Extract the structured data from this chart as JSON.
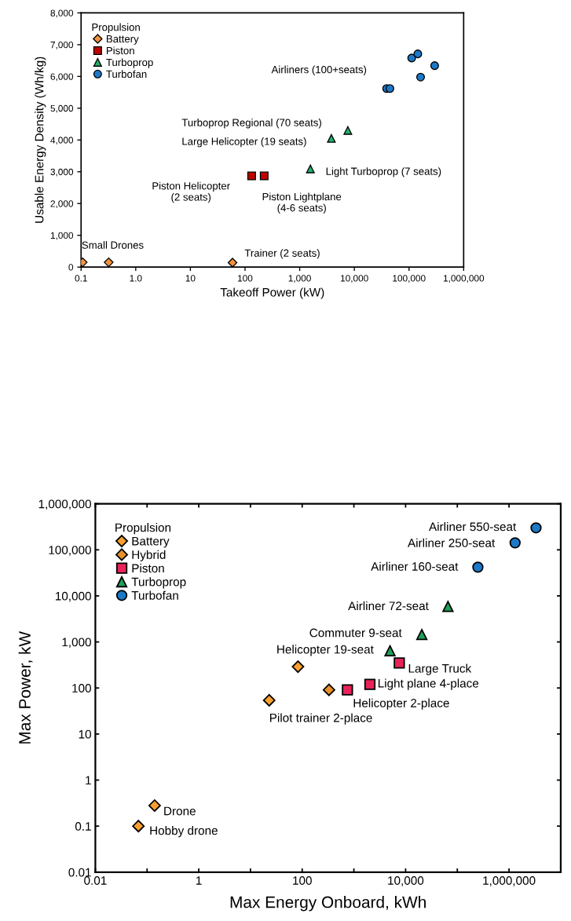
{
  "chart_data": [
    {
      "type": "scatter",
      "xlabel": "Takeoff Power (kW)",
      "ylabel": "Usable Energy Density (Wh/kg)",
      "legend_title": "Propulsion",
      "legend": "top left",
      "log": "x",
      "xlim": [
        0.1,
        1000000
      ],
      "ylim": [
        0,
        8000
      ],
      "xticks": [
        {
          "value": 0.1,
          "label": "0.1"
        },
        {
          "value": 1,
          "label": "1.0"
        },
        10,
        100,
        {
          "value": 1000,
          "label": "1,000"
        },
        {
          "value": 10000,
          "label": "10,000"
        },
        {
          "value": 100000,
          "label": "100,000"
        },
        {
          "value": 1000000,
          "label": "1,000,000"
        }
      ],
      "yticks": [
        0,
        {
          "value": 1000,
          "label": "1,000"
        },
        {
          "value": 2000,
          "label": "2,000"
        },
        {
          "value": 3000,
          "label": "3,000"
        },
        {
          "value": 4000,
          "label": "4,000"
        },
        {
          "value": 5000,
          "label": "5,000"
        },
        {
          "value": 6000,
          "label": "6,000"
        },
        {
          "value": 7000,
          "label": "7,000"
        },
        {
          "value": 8000,
          "label": "8,000"
        }
      ],
      "series": [
        {
          "name": "Battery",
          "color": "#f4923c",
          "marker": "diamond",
          "x": [
            0.107,
            0.32,
            59
          ],
          "values": [
            150,
            150,
            140
          ]
        },
        {
          "name": "Piston",
          "color": "#c00000",
          "marker": "square",
          "x": [
            132,
            224
          ],
          "values": [
            2870,
            2870
          ]
        },
        {
          "name": "Turboprop",
          "color": "#21b06a",
          "marker": "triangle",
          "x": [
            1570,
            3800,
            7600
          ],
          "values": [
            3090,
            4050,
            4300
          ]
        },
        {
          "name": "Turbofan",
          "color": "#1e78c8",
          "marker": "circle",
          "x": [
            39000,
            44700,
            112000,
            145000,
            163000,
            295000
          ],
          "values": [
            5620,
            5620,
            6580,
            6710,
            5980,
            6340
          ]
        }
      ],
      "annotations": [
        "Airliners (100+seats)",
        "Turboprop Regional (70 seats)",
        "Large Helicopter (19 seats)",
        {
          "text": "Light Turboprop (7 seats)",
          "x": 1570,
          "y": 3090
        },
        "Piston Helicopter\n(2 seats)",
        {
          "text": "Piston Lightplane\n(4-6 seats)",
          "x": 224,
          "y": 2870
        },
        {
          "text": "Small Drones",
          "x": 0.107,
          "y": 150
        },
        {
          "text": "Trainer (2 seats)",
          "x": 59,
          "y": 140
        }
      ]
    },
    {
      "type": "scatter",
      "xlabel": "Max Energy Onboard, kWh",
      "ylabel": "Max Power, kW",
      "legend_title": "Propulsion",
      "legend": "top left",
      "log": "xy",
      "xlim": [
        0.01,
        10000000
      ],
      "ylim": [
        0.01,
        1000000
      ],
      "xticks": [
        {
          "value": 0.01,
          "label": "0.01"
        },
        {
          "value": 0.1,
          "label": null
        },
        1,
        {
          "value": 10,
          "label": null
        },
        100,
        {
          "value": 1000,
          "label": null
        },
        {
          "value": 10000,
          "label": "10,000"
        },
        {
          "value": 100000,
          "label": null
        },
        {
          "value": 1000000,
          "label": "1,000,000"
        },
        {
          "value": 10000000,
          "label": null
        }
      ],
      "yticks": [
        {
          "value": 0.01,
          "label": "0.01"
        },
        {
          "value": 0.1,
          "label": "0.1"
        },
        1,
        10,
        100,
        {
          "value": 1000,
          "label": "1,000"
        },
        {
          "value": 10000,
          "label": "10,000"
        },
        {
          "value": 100000,
          "label": "100,000"
        },
        {
          "value": 1000000,
          "label": "1,000,000"
        }
      ],
      "series": [
        {
          "name": "Battery",
          "color": "#f7a030",
          "marker": "diamond",
          "x": [
            0.14,
            0.068,
            83,
            23
          ],
          "values": [
            0.28,
            0.1,
            290,
            54
          ]
        },
        {
          "name": "Hybrid",
          "color": "#e8902a",
          "marker": "diamond",
          "x": [
            330
          ],
          "values": [
            91
          ]
        },
        {
          "name": "Piston",
          "color": "#e8235a",
          "marker": "square",
          "x": [
            750,
            2040,
            7550
          ],
          "values": [
            91,
            120,
            350
          ]
        },
        {
          "name": "Turboprop",
          "color": "#1fa05a",
          "marker": "triangle",
          "x": [
            5000,
            20600,
            66000
          ],
          "values": [
            640,
            1450,
            5900
          ]
        },
        {
          "name": "Turbofan",
          "color": "#1a7ac8",
          "marker": "circle",
          "x": [
            250000,
            1310000,
            3330000
          ],
          "values": [
            42000,
            142000,
            300000
          ]
        }
      ],
      "annotations": [
        "Airliner 550-seat",
        "Airliner 250-seat",
        "Airliner 160-seat",
        "Airliner 72-seat",
        "Commuter 9-seat",
        "Helicopter 19-seat",
        {
          "text": "Large Truck",
          "x": 7550,
          "y": 350
        },
        {
          "text": "Light plane 4-place",
          "x": 2040,
          "y": 120
        },
        {
          "text": "Helicopter 2-place",
          "x": 750,
          "y": 91
        },
        {
          "text": "Pilot trainer 2-place",
          "x": 23,
          "y": 54
        },
        {
          "text": "Drone",
          "x": 0.14,
          "y": 0.28
        },
        {
          "text": "Hobby drone",
          "x": 0.068,
          "y": 0.1
        }
      ]
    }
  ]
}
